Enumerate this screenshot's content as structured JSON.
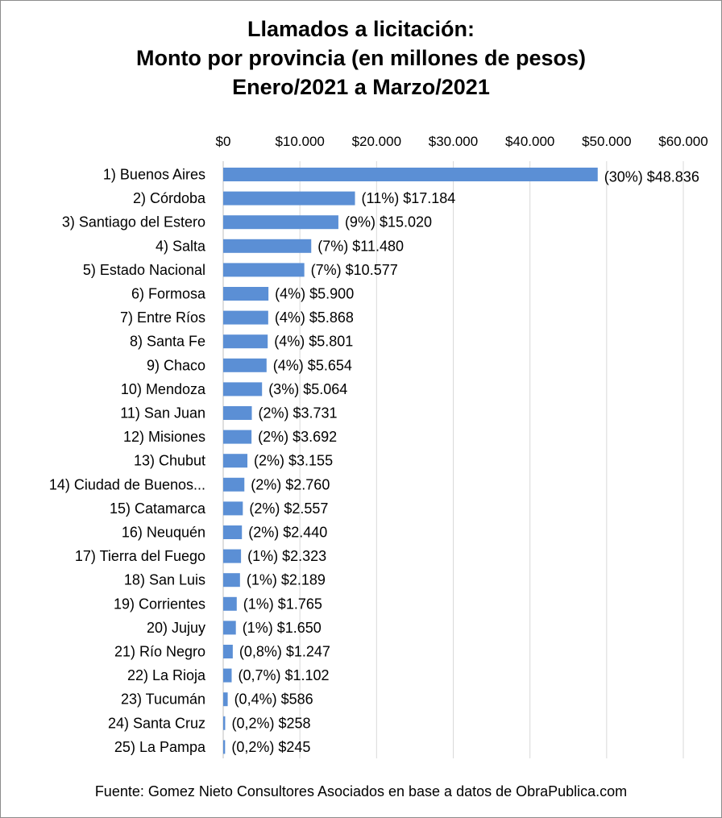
{
  "chart_data": {
    "type": "bar",
    "orientation": "horizontal",
    "title_lines": [
      "Llamados a licitación:",
      "Monto por provincia (en millones de pesos)",
      "Enero/2021 a Marzo/2021"
    ],
    "x_ticks": [
      "$0",
      "$10.000",
      "$20.000",
      "$30.000",
      "$40.000",
      "$50.000",
      "$60.000"
    ],
    "x_tick_values": [
      0,
      10000,
      20000,
      30000,
      40000,
      50000,
      60000
    ],
    "xlim": [
      0,
      60000
    ],
    "axis_position": "top",
    "grid": true,
    "bar_color": "#5b8fd5",
    "categories": [
      "1) Buenos Aires",
      "2) Córdoba",
      "3) Santiago del Estero",
      "4) Salta",
      "5) Estado Nacional",
      "6) Formosa",
      "7) Entre Ríos",
      "8) Santa Fe",
      "9) Chaco",
      "10) Mendoza",
      "11) San Juan",
      "12) Misiones",
      "13) Chubut",
      "14) Ciudad de Buenos...",
      "15) Catamarca",
      "16) Neuquén",
      "17) Tierra del Fuego",
      "18) San Luis",
      "19) Corrientes",
      "20) Jujuy",
      "21) Río Negro",
      "22) La Rioja",
      "23) Tucumán",
      "24) Santa Cruz",
      "25) La Pampa"
    ],
    "values": [
      48836,
      17184,
      15020,
      11480,
      10577,
      5900,
      5868,
      5801,
      5654,
      5064,
      3731,
      3692,
      3155,
      2760,
      2557,
      2440,
      2323,
      2189,
      1765,
      1650,
      1247,
      1102,
      586,
      258,
      245
    ],
    "data_labels": [
      "(30%) $48.836",
      "(11%) $17.184",
      "(9%) $15.020",
      "(7%) $11.480",
      "(7%) $10.577",
      "(4%) $5.900",
      "(4%) $5.868",
      "(4%) $5.801",
      "(4%) $5.654",
      "(3%) $5.064",
      "(2%) $3.731",
      "(2%) $3.692",
      "(2%) $3.155",
      "(2%) $2.760",
      "(2%) $2.557",
      "(2%) $2.440",
      "(1%) $2.323",
      "(1%) $2.189",
      "(1%) $1.765",
      "(1%) $1.650",
      "(0,8%) $1.247",
      "(0,7%) $1.102",
      "(0,4%) $586",
      "(0,2%) $258",
      "(0,2%) $245"
    ]
  },
  "source": "Fuente: Gomez Nieto Consultores Asociados en base a datos de ObraPublica.com"
}
